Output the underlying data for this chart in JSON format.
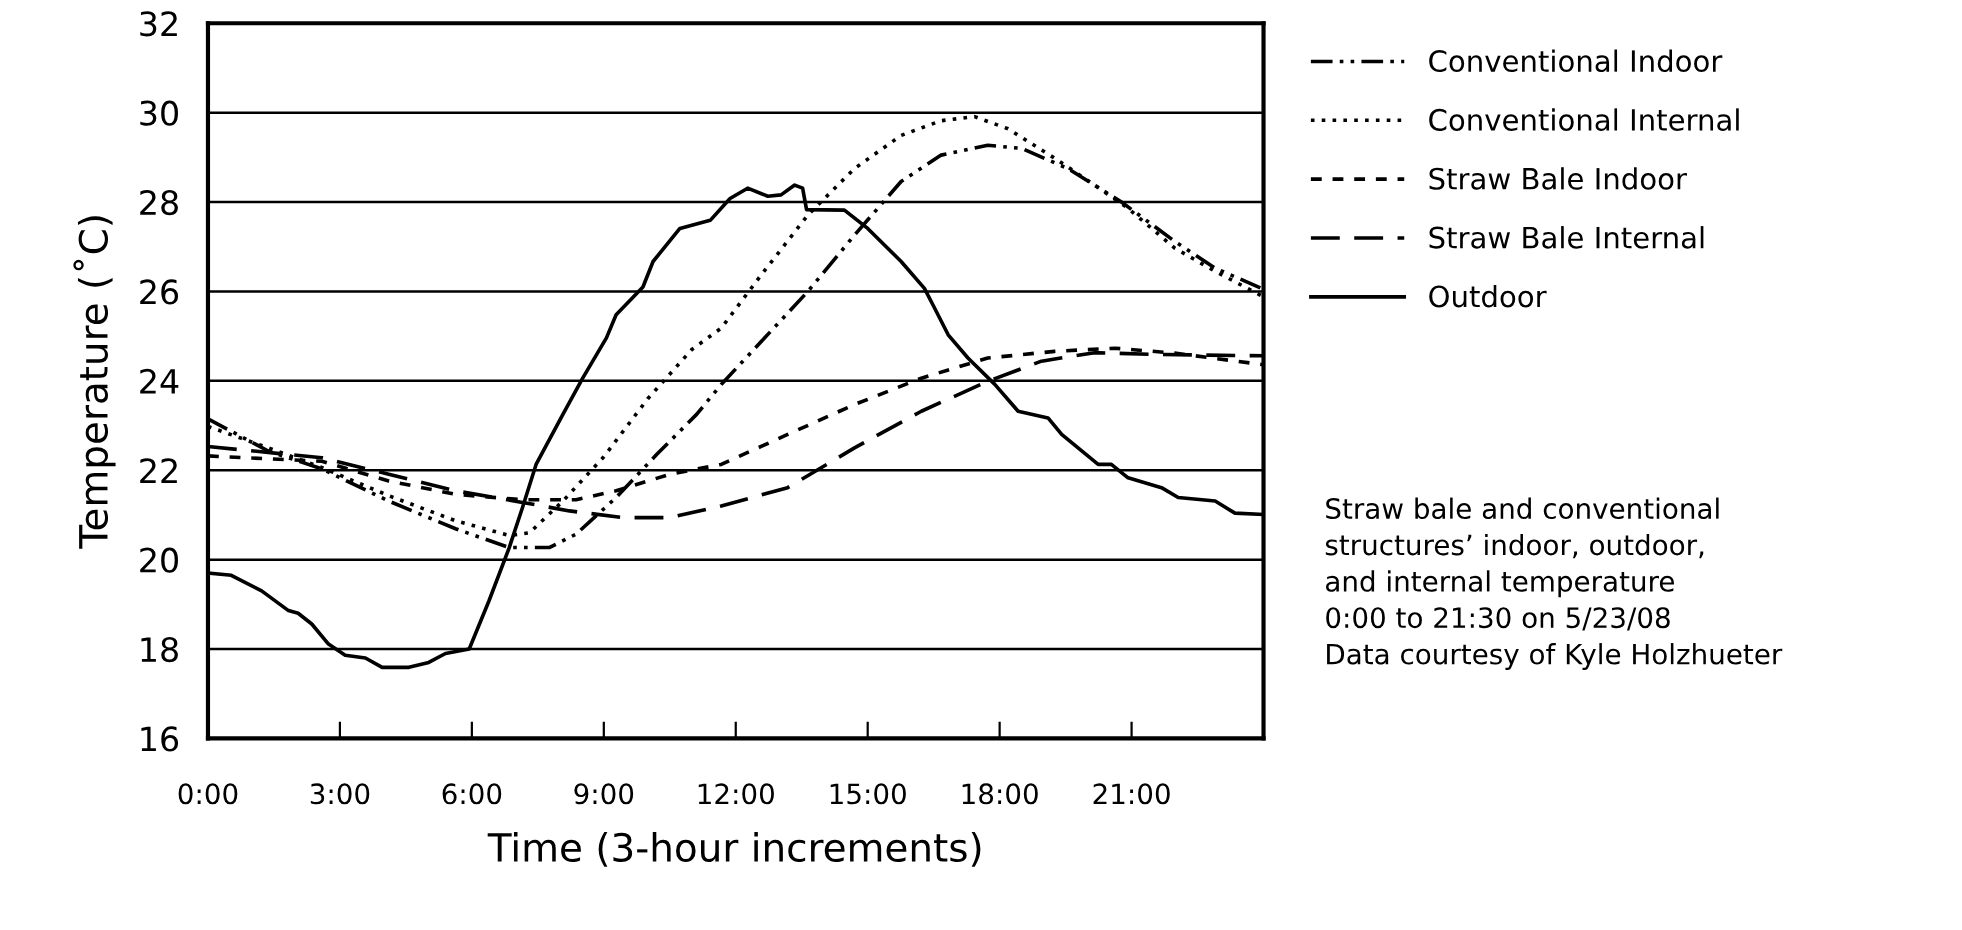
{
  "chart_data": {
    "type": "line",
    "xlabel": "Time (3-hour increments)",
    "ylabel": "Temperature (˚C)",
    "xlim": [
      0,
      24
    ],
    "xticks": [
      {
        "value": 0,
        "label": "0:00"
      },
      {
        "value": 3,
        "label": "3:00"
      },
      {
        "value": 6,
        "label": "6:00"
      },
      {
        "value": 9,
        "label": "9:00"
      },
      {
        "value": 12,
        "label": "12:00"
      },
      {
        "value": 15,
        "label": "15:00"
      },
      {
        "value": 18,
        "label": "18:00"
      },
      {
        "value": 21,
        "label": "21:00"
      }
    ],
    "ylim": [
      16,
      32
    ],
    "yticks": [
      16,
      18,
      20,
      22,
      24,
      26,
      28,
      30,
      32
    ],
    "grid": "y",
    "legend": "right",
    "marker": "none",
    "series": [
      {
        "name": "Conventional Indoor",
        "color": "#000000",
        "line_style": "dashdot",
        "x": [
          0,
          1.37,
          2.59,
          4.11,
          5.63,
          6.85,
          7.76,
          8.37,
          9.28,
          10.2,
          11.11,
          11.67,
          12.58,
          13.64,
          14.7,
          15.76,
          16.67,
          17.73,
          18.5,
          19.55,
          20.77,
          21.98,
          22.9,
          24
        ],
        "values": [
          23.15,
          22.43,
          22.03,
          21.31,
          20.69,
          20.27,
          20.27,
          20.57,
          21.39,
          22.35,
          23.25,
          23.92,
          24.88,
          26.0,
          27.26,
          28.46,
          29.05,
          29.27,
          29.2,
          28.75,
          28.0,
          27.12,
          26.52,
          26.05
        ]
      },
      {
        "name": "Conventional Internal",
        "color": "#000000",
        "line_style": "dotted",
        "x": [
          0,
          1.37,
          2.59,
          4.11,
          5.63,
          6.85,
          7.31,
          8.07,
          9.0,
          10.0,
          11.0,
          11.67,
          12.58,
          13.64,
          14.7,
          15.76,
          16.67,
          17.43,
          18.19,
          19.25,
          20.16,
          20.92,
          21.98,
          22.9,
          24
        ],
        "values": [
          22.98,
          22.5,
          22.06,
          21.43,
          20.87,
          20.54,
          20.6,
          21.31,
          22.3,
          23.6,
          24.7,
          25.18,
          26.37,
          27.71,
          28.75,
          29.49,
          29.82,
          29.91,
          29.64,
          28.98,
          28.38,
          27.86,
          26.97,
          26.45,
          25.88
        ]
      },
      {
        "name": "Straw Bale Indoor",
        "color": "#000000",
        "line_style": "dashed",
        "x": [
          0,
          2.59,
          4.11,
          5.63,
          7.15,
          8.37,
          9.28,
          10.5,
          11.67,
          13.18,
          14.7,
          16.22,
          17.73,
          19.25,
          20.62,
          21.98,
          24
        ],
        "values": [
          22.32,
          22.2,
          21.76,
          21.46,
          21.34,
          21.34,
          21.54,
          21.91,
          22.13,
          22.8,
          23.47,
          24.06,
          24.51,
          24.66,
          24.73,
          24.62,
          24.36
        ]
      },
      {
        "name": "Straw Bale Internal",
        "color": "#000000",
        "line_style": "long dashed",
        "x": [
          0,
          2.59,
          4.11,
          5.63,
          7.15,
          8.22,
          9.44,
          10.5,
          11.67,
          13.18,
          14.7,
          16.22,
          17.73,
          18.95,
          20.16,
          21.53,
          24
        ],
        "values": [
          22.53,
          22.28,
          21.91,
          21.54,
          21.28,
          21.09,
          20.94,
          20.94,
          21.2,
          21.61,
          22.5,
          23.32,
          23.99,
          24.44,
          24.63,
          24.59,
          24.56
        ]
      },
      {
        "name": "Outdoor",
        "color": "#000000",
        "line_style": "solid",
        "x": [
          0,
          0.53,
          1.22,
          1.83,
          2.05,
          2.36,
          2.74,
          3.12,
          3.58,
          3.96,
          4.57,
          5.02,
          5.4,
          5.94,
          6.39,
          6.85,
          7.15,
          7.46,
          8.07,
          8.52,
          9.06,
          9.28,
          9.89,
          10.12,
          10.73,
          11.42,
          11.87,
          12.27,
          12.73,
          13.03,
          13.34,
          13.52,
          13.61,
          14.47,
          15.0,
          15.76,
          16.29,
          16.52,
          16.83,
          17.28,
          17.89,
          18.42,
          19.1,
          19.41,
          20.24,
          20.54,
          20.92,
          21.68,
          22.06,
          22.9,
          23.35,
          24
        ],
        "values": [
          19.7,
          19.65,
          19.3,
          18.86,
          18.8,
          18.56,
          18.11,
          17.86,
          17.8,
          17.59,
          17.59,
          17.7,
          17.9,
          18.0,
          19.08,
          20.27,
          21.16,
          22.13,
          23.25,
          24.06,
          24.96,
          25.48,
          26.1,
          26.67,
          27.41,
          27.59,
          28.08,
          28.31,
          28.13,
          28.16,
          28.38,
          28.31,
          27.83,
          27.82,
          27.41,
          26.67,
          26.07,
          25.63,
          25.03,
          24.51,
          23.92,
          23.32,
          23.17,
          22.8,
          22.13,
          22.13,
          21.83,
          21.61,
          21.39,
          21.31,
          21.04,
          21.01
        ]
      }
    ],
    "annotations": [
      "Straw bale and conventional\nstructures’ indoor, outdoor,\nand internal temperature\n0:00 to 21:30 on 5/23/08\nData courtesy of Kyle Holzhueter"
    ]
  }
}
